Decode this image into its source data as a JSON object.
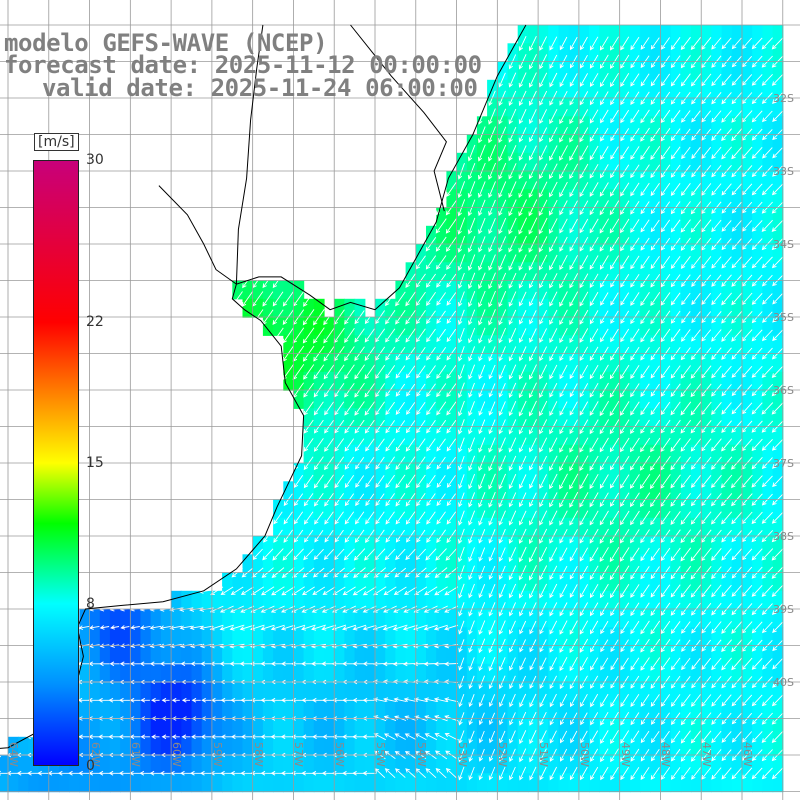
{
  "title": {
    "model": "modelo GEFS-WAVE (NCEP)",
    "forecast": "forecast date: 2025-11-12 00:00:00",
    "valid": "valid date: 2025-11-24 06:00:00"
  },
  "colorbar": {
    "unit": "[m/s]",
    "ticks": [
      {
        "value": 30,
        "label": "30"
      },
      {
        "value": 22,
        "label": "22"
      },
      {
        "value": 15,
        "label": "15"
      },
      {
        "value": 8,
        "label": "8"
      },
      {
        "value": 0,
        "label": "0"
      }
    ],
    "stops": [
      {
        "value": 0,
        "color": "#0000ff"
      },
      {
        "value": 4,
        "color": "#0090ff"
      },
      {
        "value": 8,
        "color": "#00ffff"
      },
      {
        "value": 12,
        "color": "#00ff00"
      },
      {
        "value": 15,
        "color": "#ffff00"
      },
      {
        "value": 22,
        "color": "#ff0000"
      },
      {
        "value": 30,
        "color": "#c8007a"
      }
    ]
  },
  "map_data": {
    "lon_range": [
      -65,
      -45
    ],
    "lat_range": [
      -41.5,
      -31
    ],
    "grid_step_deg": 0.25,
    "lat_labels": [
      "32S",
      "33S",
      "34S",
      "35S",
      "36S",
      "37S",
      "38S",
      "39S",
      "40S"
    ],
    "lon_labels": [
      "64W",
      "63W",
      "62W",
      "61W",
      "60W",
      "59W",
      "58W",
      "57W",
      "56W",
      "55W",
      "54W",
      "53W",
      "52W",
      "51W",
      "50W",
      "49W",
      "48W",
      "47W",
      "46W"
    ],
    "wind_field": {
      "max_speed": 12,
      "min_speed": 1,
      "dominant_direction": "from northeast",
      "max_region": "off Uruguay coast near 57W 35S"
    }
  }
}
